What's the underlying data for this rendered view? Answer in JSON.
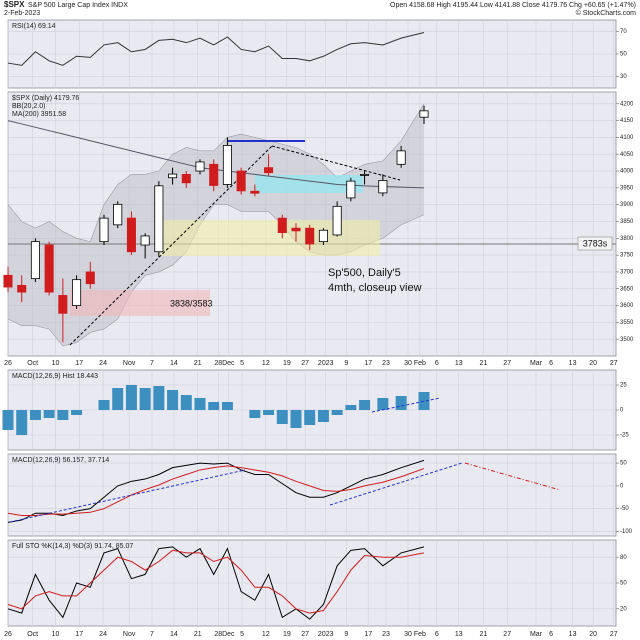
{
  "header": {
    "symbol": "$SPX",
    "name": "S&P 500 Large Cap Index  INDX",
    "date": "2-Feb-2023",
    "quote": "Open 4158.68  High 4195.44  Low 4141.88  Close 4179.76  Chg +60.65 (+1.47%)",
    "credit": "© StockCharts.com"
  },
  "chart_data": [
    {
      "type": "line",
      "title": "RSI(14) 69.14",
      "ylim": [
        20,
        80
      ],
      "yticks": [
        30,
        50,
        70
      ],
      "grid": true,
      "series": [
        {
          "name": "RSI(14)",
          "color": "#333333",
          "values": [
            42,
            40,
            52,
            44,
            40,
            48,
            47,
            58,
            60,
            52,
            54,
            62,
            63,
            60,
            64,
            58,
            65,
            54,
            52,
            57,
            46,
            46,
            44,
            48,
            54,
            59,
            60,
            58,
            64,
            69
          ]
        }
      ]
    },
    {
      "type": "candlestick",
      "title": "$SPX (Daily) 4179.76",
      "x": [
        0,
        3,
        6,
        9,
        12,
        15,
        18,
        21,
        24,
        27,
        30,
        33,
        36,
        39,
        42,
        45,
        48,
        51,
        54,
        57,
        60,
        63,
        66,
        69,
        72,
        75,
        78,
        82,
        86,
        91
      ],
      "xlim": [
        0,
        133
      ],
      "xticks": [
        {
          "value": 0,
          "label": "26"
        },
        {
          "value": 5.4,
          "label": "Oct"
        },
        {
          "value": 10.4,
          "label": "10"
        },
        {
          "value": 15.6,
          "label": "17"
        },
        {
          "value": 20.8,
          "label": "24"
        },
        {
          "value": 26.5,
          "label": "Nov"
        },
        {
          "value": 31.5,
          "label": "7"
        },
        {
          "value": 36.3,
          "label": "14"
        },
        {
          "value": 41.5,
          "label": "21"
        },
        {
          "value": 46,
          "label": "28"
        },
        {
          "value": 48.2,
          "label": "Dec"
        },
        {
          "value": 51.2,
          "label": "5"
        },
        {
          "value": 56.4,
          "label": "12"
        },
        {
          "value": 61,
          "label": "19"
        },
        {
          "value": 65,
          "label": "27"
        },
        {
          "value": 69.5,
          "label": "2023"
        },
        {
          "value": 74,
          "label": "9"
        },
        {
          "value": 78.8,
          "label": "17"
        },
        {
          "value": 82.7,
          "label": "23"
        },
        {
          "value": 87.5,
          "label": "30"
        },
        {
          "value": 90.1,
          "label": "Feb"
        },
        {
          "value": 93.8,
          "label": "6"
        },
        {
          "value": 98.6,
          "label": "13"
        },
        {
          "value": 104,
          "label": "21"
        },
        {
          "value": 109.2,
          "label": "27"
        },
        {
          "value": 115.5,
          "label": "Mar"
        },
        {
          "value": 118.8,
          "label": "6"
        },
        {
          "value": 123.5,
          "label": "13"
        },
        {
          "value": 128,
          "label": "20"
        },
        {
          "value": 132.5,
          "label": "27"
        }
      ],
      "ylim": [
        3450,
        4235
      ],
      "yticks": [
        3500,
        3550,
        3600,
        3650,
        3700,
        3750,
        3800,
        3850,
        3900,
        3950,
        4000,
        4050,
        4100,
        4150,
        4200
      ],
      "grid": true,
      "open": [
        3690,
        3660,
        3680,
        3780,
        3630,
        3600,
        3700,
        3790,
        3840,
        3860,
        3780,
        3760,
        3980,
        3990,
        4000,
        4020,
        3960,
        4000,
        3940,
        4010,
        3860,
        3830,
        3830,
        3790,
        3810,
        3920,
        3990,
        3935,
        4020,
        4160
      ],
      "high": [
        3715,
        3690,
        3800,
        3790,
        3680,
        3690,
        3730,
        3870,
        3910,
        3880,
        3815,
        3970,
        4010,
        4000,
        4035,
        4035,
        4100,
        4010,
        3960,
        4050,
        3870,
        3845,
        3840,
        3830,
        3910,
        3980,
        4000,
        3990,
        4075,
        4195
      ],
      "low": [
        3640,
        3610,
        3670,
        3630,
        3491,
        3590,
        3650,
        3780,
        3830,
        3750,
        3740,
        3745,
        3960,
        3950,
        3990,
        3940,
        3950,
        3930,
        3925,
        3985,
        3800,
        3790,
        3765,
        3780,
        3805,
        3910,
        3960,
        3925,
        4010,
        4140
      ],
      "close": [
        3655,
        3640,
        3790,
        3640,
        3577,
        3677,
        3665,
        3860,
        3901,
        3760,
        3807,
        3956,
        3991,
        3965,
        4027,
        3957,
        4076,
        3941,
        3934,
        3995,
        3817,
        3822,
        3783,
        3824,
        3895,
        3970,
        3990,
        3972,
        4060,
        4179
      ],
      "up_color": "#000000",
      "down_color": "#d01c1c",
      "band": {
        "name": "BB(20,2.0)",
        "color": "#b8b8c4",
        "upper": [
          3900,
          3850,
          3830,
          3850,
          3820,
          3800,
          3790,
          3900,
          3960,
          3990,
          3990,
          4000,
          4050,
          4070,
          4060,
          4060,
          4100,
          4110,
          4100,
          4090,
          4080,
          4070,
          4050,
          4020,
          3980,
          4000,
          4020,
          4030,
          4090,
          4200
        ],
        "lower": [
          3560,
          3540,
          3540,
          3530,
          3480,
          3490,
          3520,
          3530,
          3560,
          3640,
          3690,
          3700,
          3720,
          3760,
          3840,
          3900,
          3900,
          3880,
          3880,
          3880,
          3840,
          3790,
          3760,
          3750,
          3750,
          3760,
          3780,
          3800,
          3840,
          3870
        ]
      },
      "series": [
        {
          "name": "MA(200) 3951.58",
          "color": "#555566",
          "values": [
            4150,
            4140,
            4130,
            4120,
            4110,
            4100,
            4090,
            4080,
            4070,
            4060,
            4050,
            4040,
            4030,
            4020,
            4010,
            4005,
            4000,
            3995,
            3990,
            3985,
            3980,
            3975,
            3970,
            3965,
            3960,
            3958,
            3956,
            3954,
            3952,
            3950
          ]
        }
      ],
      "level": 3783,
      "annotations": [
        "3783s",
        "Sp'500, Daily'5",
        "4mth, closeup view",
        "3838/3583"
      ]
    },
    {
      "type": "bar",
      "title": "MACD(12,26,9) Hist 18.443",
      "ylim": [
        -40,
        40
      ],
      "yticks": [
        -25,
        0,
        25
      ],
      "grid": true,
      "color": "#3d8fc0",
      "values": [
        -20,
        -25,
        -10,
        -8,
        -10,
        -5,
        0,
        10,
        22,
        25,
        22,
        24,
        20,
        15,
        12,
        8,
        8,
        0,
        -8,
        -5,
        -14,
        -18,
        -15,
        -12,
        -5,
        5,
        10,
        12,
        14,
        18
      ]
    },
    {
      "type": "line",
      "title": "MACD(12,26,9) 56.157, 37.714",
      "ylim": [
        -110,
        70
      ],
      "yticks": [
        -100,
        -50,
        0,
        50
      ],
      "grid": true,
      "series": [
        {
          "name": "MACD",
          "color": "#000000",
          "values": [
            -80,
            -75,
            -60,
            -60,
            -65,
            -55,
            -50,
            -25,
            0,
            10,
            15,
            25,
            40,
            45,
            50,
            48,
            50,
            35,
            25,
            25,
            5,
            -15,
            -25,
            -25,
            -15,
            0,
            15,
            25,
            40,
            56
          ]
        },
        {
          "name": "Signal",
          "color": "#d01c1c",
          "values": [
            -60,
            -65,
            -65,
            -62,
            -62,
            -60,
            -58,
            -50,
            -35,
            -20,
            -8,
            2,
            15,
            25,
            35,
            40,
            44,
            40,
            35,
            30,
            22,
            10,
            0,
            -10,
            -12,
            -8,
            0,
            8,
            20,
            38
          ]
        }
      ]
    },
    {
      "type": "line",
      "title": "Full STO %K(14,3) %D(3) 91.74, 85.07",
      "ylim": [
        0,
        100
      ],
      "yticks": [
        20,
        50,
        80
      ],
      "grid": true,
      "series": [
        {
          "name": "%K",
          "color": "#000000",
          "values": [
            20,
            15,
            60,
            30,
            10,
            50,
            45,
            85,
            90,
            55,
            60,
            90,
            92,
            80,
            90,
            60,
            90,
            40,
            30,
            60,
            10,
            20,
            8,
            25,
            70,
            88,
            90,
            70,
            85,
            92
          ]
        },
        {
          "name": "%D",
          "color": "#d01c1c",
          "values": [
            25,
            20,
            35,
            40,
            35,
            35,
            50,
            65,
            80,
            75,
            65,
            75,
            88,
            85,
            85,
            75,
            80,
            65,
            45,
            45,
            35,
            20,
            15,
            18,
            40,
            65,
            82,
            80,
            80,
            85
          ]
        }
      ]
    }
  ]
}
